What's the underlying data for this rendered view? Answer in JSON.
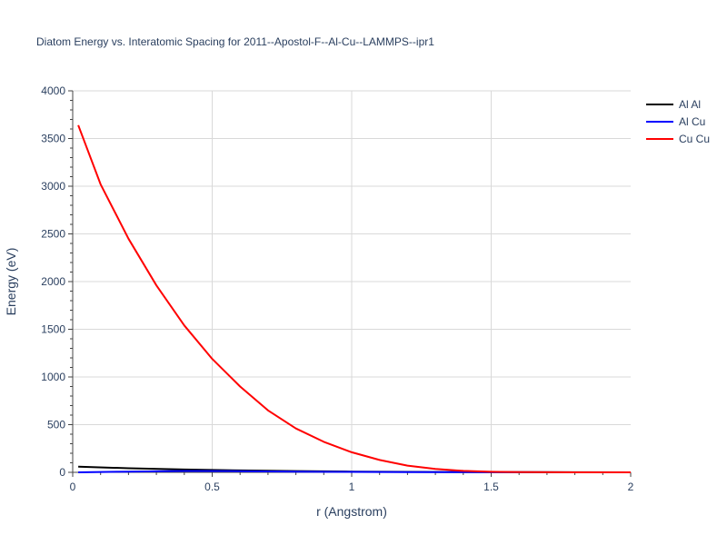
{
  "chart_data": {
    "type": "line",
    "title": "Diatom Energy vs. Interatomic Spacing for 2011--Apostol-F--Al-Cu--LAMMPS--ipr1",
    "xlabel": "r (Angstrom)",
    "ylabel": "Energy (eV)",
    "xlim": [
      0,
      2
    ],
    "ylim": [
      0,
      4000
    ],
    "x_ticks": [
      "0",
      "0.5",
      "1",
      "1.5",
      "2"
    ],
    "y_ticks": [
      "0",
      "500",
      "1000",
      "1500",
      "2000",
      "2500",
      "3000",
      "3500",
      "4000"
    ],
    "grid": true,
    "legend_position": "top-right",
    "series": [
      {
        "name": "Al Al",
        "color": "#000000",
        "x": [
          0.02,
          0.2,
          0.4,
          0.6,
          0.8,
          1.0,
          1.2,
          1.4,
          1.6,
          1.8,
          2.0
        ],
        "y": [
          60,
          43,
          30,
          20,
          13,
          8,
          5,
          3,
          2,
          1,
          0
        ]
      },
      {
        "name": "Al Cu",
        "color": "#0000ff",
        "x": [
          0.02,
          0.2,
          0.4,
          0.6,
          0.8,
          1.0,
          1.2,
          1.4,
          1.6,
          1.8,
          2.0
        ],
        "y": [
          0,
          8,
          14,
          12,
          8,
          5,
          3,
          2,
          1,
          0,
          0
        ]
      },
      {
        "name": "Cu Cu",
        "color": "#ff0000",
        "x": [
          0.02,
          0.1,
          0.2,
          0.3,
          0.4,
          0.5,
          0.6,
          0.7,
          0.8,
          0.9,
          1.0,
          1.1,
          1.2,
          1.3,
          1.4,
          1.5,
          1.6,
          1.8,
          2.0
        ],
        "y": [
          3640,
          3020,
          2450,
          1960,
          1540,
          1190,
          900,
          650,
          460,
          320,
          210,
          130,
          70,
          35,
          15,
          6,
          2,
          0,
          0
        ]
      }
    ]
  }
}
